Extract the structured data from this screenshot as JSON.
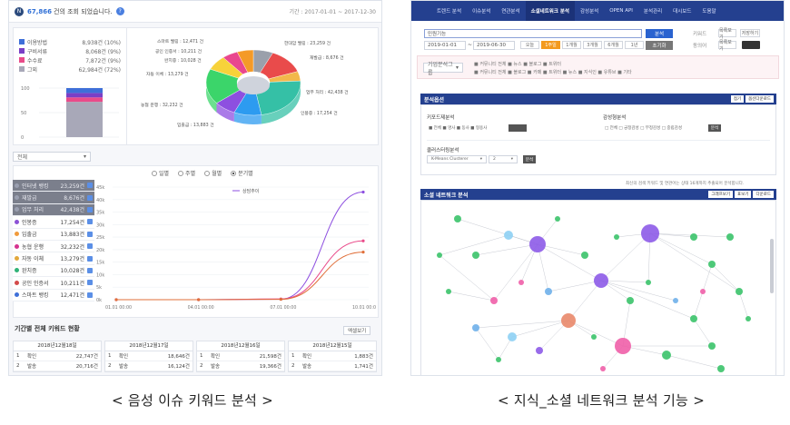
{
  "left": {
    "header": {
      "badge": "N",
      "count": "67,866",
      "count_suffix": "건의 조회 되었습니다.",
      "period": "기간 : 2017-01-01 ~ 2017-12-30"
    },
    "legend": [
      {
        "label": "이용방법",
        "value": "8,938건 (10%)",
        "color": "#3e6fd8"
      },
      {
        "label": "구비서류",
        "value": "8,068건 (9%)",
        "color": "#7a3fc6"
      },
      {
        "label": "수수료",
        "value": "7,872건 (9%)",
        "color": "#e94b8a"
      },
      {
        "label": "그외",
        "value": "62,984건 (72%)",
        "color": "#a8a8b8"
      }
    ],
    "stack_ticks": [
      "100",
      "50",
      "0"
    ],
    "pie_labels": [
      {
        "text": "스마트 밸링 : 12,471 건"
      },
      {
        "text": "한대암 밸링 : 23,259 건"
      },
      {
        "text": "공인 인증서 : 10,211 건"
      },
      {
        "text": "완치증 : 10,028 건"
      },
      {
        "text": "재발급 : 8,676 건"
      },
      {
        "text": "자동 이체 : 13,279 건"
      },
      {
        "text": "업무 처리 : 42,438 건"
      },
      {
        "text": "농협 운행 : 32,232 건"
      },
      {
        "text": "인봉증 : 17,254 건"
      },
      {
        "text": "입출금 : 13,883 건"
      }
    ],
    "select_all": "전체",
    "radios": [
      {
        "label": "일별",
        "on": false
      },
      {
        "label": "주별",
        "on": false
      },
      {
        "label": "월별",
        "on": false
      },
      {
        "label": "분기별",
        "on": true
      }
    ],
    "keywords": [
      {
        "label": "인터넷 뱅킹",
        "value": "23,259건",
        "color": "#9a9fb0",
        "dim": true
      },
      {
        "label": "재발급",
        "value": "8,676건",
        "color": "#9a9fb0",
        "dim": true
      },
      {
        "label": "업무 처리",
        "value": "42,438건",
        "color": "#9a9fb0",
        "dim": true
      },
      {
        "label": "인봉증",
        "value": "17,254건",
        "color": "#8c52d6",
        "dim": false
      },
      {
        "label": "입출금",
        "value": "13,883건",
        "color": "#f09a3c",
        "dim": false
      },
      {
        "label": "농협 운행",
        "value": "32,232건",
        "color": "#d5338f",
        "dim": false
      },
      {
        "label": "자동 이체",
        "value": "13,279건",
        "color": "#e2a83c",
        "dim": false
      },
      {
        "label": "완치증",
        "value": "10,028건",
        "color": "#2fb277",
        "dim": false
      },
      {
        "label": "공인 인증서",
        "value": "10,211건",
        "color": "#d34a4a",
        "dim": false
      },
      {
        "label": "스마트 뱅킹",
        "value": "12,471건",
        "color": "#3e6fd8",
        "dim": false
      }
    ],
    "line_legend": "상담추이",
    "line_yticks": [
      "45k",
      "40k",
      "35k",
      "30k",
      "25k",
      "20k",
      "15k",
      "10k",
      "5k",
      "0k"
    ],
    "line_xticks": [
      "01.01 00:00",
      "04.01 00:00",
      "07.01 00:00",
      "10.01 00:00"
    ],
    "line_series": [
      {
        "color": "#8d4fe0",
        "values": [
          0,
          0,
          200,
          43000
        ]
      },
      {
        "color": "#e94b8a",
        "values": [
          0,
          0,
          300,
          23500
        ]
      },
      {
        "color": "#e06f3a",
        "values": [
          0,
          0,
          150,
          19000
        ]
      }
    ],
    "table_title": "기간별 전체 키워드 현황",
    "table_button": "엑셀보기",
    "day_tables": [
      {
        "date": "2018년12월18일",
        "rows": [
          {
            "n": "1",
            "k": "확인",
            "v": "22,747건"
          },
          {
            "n": "2",
            "k": "발송",
            "v": "20,716건"
          }
        ]
      },
      {
        "date": "2018년12월17일",
        "rows": [
          {
            "n": "1",
            "k": "확인",
            "v": "18,646건"
          },
          {
            "n": "2",
            "k": "발송",
            "v": "16,124건"
          }
        ]
      },
      {
        "date": "2018년12월16일",
        "rows": [
          {
            "n": "1",
            "k": "확인",
            "v": "21,598건"
          },
          {
            "n": "2",
            "k": "발송",
            "v": "19,366건"
          }
        ]
      },
      {
        "date": "2018년12월15일",
        "rows": [
          {
            "n": "1",
            "k": "확인",
            "v": "1,883건"
          },
          {
            "n": "2",
            "k": "발송",
            "v": "1,741건"
          }
        ]
      }
    ]
  },
  "right": {
    "nav": [
      "트렌드 분석",
      "이슈분석",
      "연관분석",
      "소셜네트워크 분석",
      "감성분석",
      "OPEN API",
      "분석관리",
      "대시보드",
      "도움말"
    ],
    "nav_active": 3,
    "search_value": "민원기능",
    "search_button": "분석",
    "reset_button": "초기화",
    "date_from": "2019-01-01",
    "date_to": "2019-06-30",
    "periods": [
      "오늘",
      "1주일",
      "1개월",
      "3개월",
      "6개월",
      "1년"
    ],
    "period_active": 1,
    "side_labels": [
      "키워드",
      "동의어"
    ],
    "side_buttons": [
      "목록보기",
      "저장하기",
      "목록보기"
    ],
    "filter_select": "기업분석그룹",
    "filter_line1": "■ 커뮤니티 전체 ■ 뉴스 ■ 블로그 ■ 트위터",
    "filter_line2": "■ 커뮤니티 전체 ■ 블로그 ■ 카페 ■ 트위터 ■ 뉴스 ■ 지식인 ■ 유튜브 ■ 기타",
    "analysis_title": "분석옵션",
    "analysis_btns": [
      "접기",
      "옵션다운로드"
    ],
    "keyword_type_label": "키포드제분석",
    "keyword_types": "■ 전체 ■ 명사 ■ 동사 ■ 형용사",
    "emotion_label": "감성형분석",
    "emotions": "□ 전체 □ 긍정감성 □ 부정감성 □ 중립감성",
    "emotion_btn": "분석",
    "cluster_label": "클러스터링분석",
    "cluster_select": "K-Means Clusterer",
    "cluster_num": "2",
    "cluster_btn": "분석",
    "hint": "최신의 검색 키워드 및 연관어는 상태 16개까지 추출되어 분석합니다.",
    "net_title": "소셜 네트워크 분석",
    "net_btns": [
      "그래프보기",
      "표보기",
      "다운로드"
    ]
  },
  "captions": {
    "left": "< 음성 이슈 키워드 분석 >",
    "right": "< 지식_소셜 네트워크 분석 기능 >"
  }
}
